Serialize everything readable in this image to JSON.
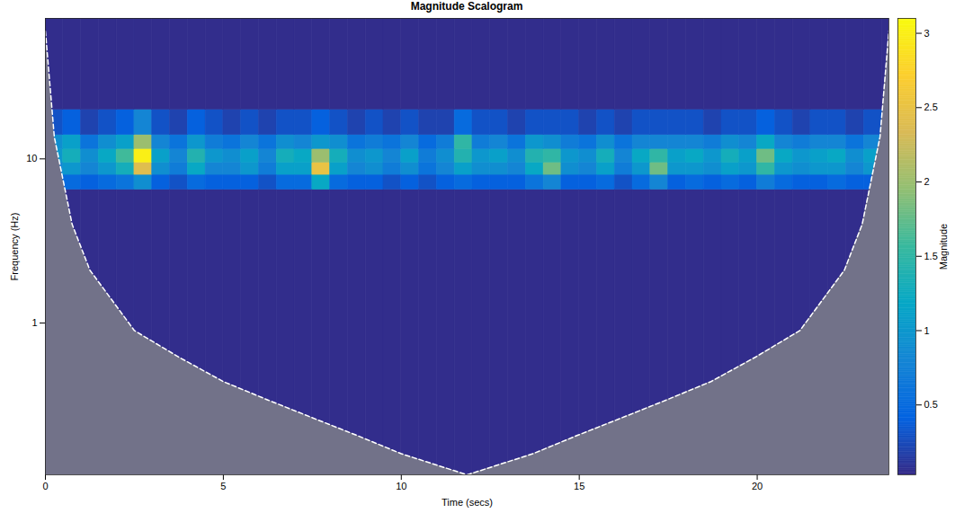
{
  "chart_data": {
    "type": "heatmap",
    "title": "Magnitude Scalogram",
    "x_label": "Time (secs)",
    "y_label": "Frequency (Hz)",
    "xlim": [
      0,
      23.7
    ],
    "ylim": [
      0.119,
      71.7
    ],
    "xticks": [
      0,
      5,
      10,
      15,
      20
    ],
    "yticks": [
      1,
      10
    ],
    "log": "y",
    "time_edges": [
      0,
      0.5,
      1,
      1.5,
      2,
      2.5,
      3,
      3.5,
      4,
      4.5,
      5,
      5.5,
      6,
      6.5,
      7,
      7.5,
      8,
      8.5,
      9,
      9.5,
      10,
      10.5,
      11,
      11.5,
      12,
      12.5,
      13,
      13.5,
      14,
      14.5,
      15,
      15.5,
      16,
      16.5,
      17,
      17.5,
      18,
      18.5,
      19,
      19.5,
      20,
      20.5,
      21,
      21.5,
      22,
      22.5,
      23,
      23.5,
      23.7
    ],
    "frequency_edges": [
      0.119,
      6.5,
      8,
      9.5,
      11.5,
      14,
      20,
      71.7
    ],
    "magnitude": [
      [
        0.05,
        0.05,
        0.05,
        0.05,
        0.05,
        0.05,
        0.05,
        0.05,
        0.05,
        0.05,
        0.05,
        0.05,
        0.05,
        0.05,
        0.05,
        0.05,
        0.05,
        0.05,
        0.05,
        0.05,
        0.05,
        0.05,
        0.05,
        0.05,
        0.05,
        0.05,
        0.05,
        0.05,
        0.05,
        0.05,
        0.05,
        0.05,
        0.05,
        0.05,
        0.05,
        0.05,
        0.05,
        0.05,
        0.05,
        0.05,
        0.05,
        0.05,
        0.05,
        0.05,
        0.05,
        0.05,
        0.05,
        0.05
      ],
      [
        0.4,
        0.5,
        0.4,
        0.5,
        0.6,
        0.9,
        0.4,
        0.3,
        0.5,
        0.4,
        0.4,
        0.4,
        0.3,
        0.5,
        0.5,
        1.2,
        0.5,
        0.4,
        0.4,
        0.3,
        0.4,
        0.3,
        0.4,
        0.5,
        0.4,
        0.4,
        0.4,
        0.6,
        0.8,
        0.4,
        0.4,
        0.5,
        0.3,
        0.5,
        0.8,
        0.4,
        0.5,
        0.4,
        0.5,
        0.4,
        0.7,
        0.5,
        0.4,
        0.4,
        0.5,
        0.4,
        0.4,
        0.6
      ],
      [
        0.8,
        1.0,
        0.8,
        1.0,
        1.3,
        2.4,
        0.9,
        0.7,
        1.2,
        0.8,
        0.8,
        1.0,
        0.7,
        1.1,
        1.1,
        2.5,
        1.1,
        0.8,
        0.9,
        0.7,
        0.9,
        0.6,
        0.8,
        1.1,
        0.9,
        0.9,
        0.8,
        1.2,
        1.8,
        0.9,
        0.8,
        1.1,
        0.7,
        1.0,
        1.8,
        1.0,
        1.0,
        0.9,
        1.1,
        1.0,
        1.5,
        1.0,
        0.9,
        1.0,
        1.0,
        0.8,
        1.0,
        1.2
      ],
      [
        1.0,
        1.3,
        0.9,
        1.2,
        1.6,
        3.0,
        1.1,
        0.8,
        1.4,
        1.0,
        0.9,
        1.1,
        0.8,
        1.3,
        1.2,
        2.0,
        1.3,
        0.9,
        1.0,
        0.8,
        1.1,
        0.7,
        0.9,
        1.4,
        1.0,
        1.1,
        0.9,
        1.4,
        1.5,
        1.0,
        0.9,
        1.3,
        0.8,
        1.2,
        1.5,
        1.1,
        1.2,
        1.0,
        1.3,
        1.1,
        1.8,
        1.2,
        1.0,
        1.1,
        1.2,
        0.9,
        1.1,
        1.5
      ],
      [
        0.9,
        1.1,
        0.6,
        0.9,
        1.1,
        2.0,
        0.8,
        0.6,
        1.0,
        0.7,
        0.6,
        0.8,
        0.6,
        0.9,
        0.8,
        1.0,
        0.9,
        0.6,
        0.7,
        0.6,
        0.8,
        0.5,
        0.7,
        1.5,
        0.7,
        0.8,
        0.6,
        1.0,
        0.9,
        0.7,
        0.6,
        0.9,
        0.6,
        0.8,
        0.8,
        0.8,
        0.8,
        0.7,
        0.9,
        0.8,
        1.2,
        0.8,
        0.7,
        0.8,
        0.8,
        0.6,
        0.8,
        1.0
      ],
      [
        0.3,
        0.4,
        0.2,
        0.3,
        0.4,
        0.8,
        0.3,
        0.2,
        0.4,
        0.3,
        0.2,
        0.3,
        0.2,
        0.3,
        0.3,
        0.4,
        0.3,
        0.2,
        0.3,
        0.2,
        0.3,
        0.2,
        0.2,
        0.5,
        0.3,
        0.3,
        0.2,
        0.3,
        0.3,
        0.3,
        0.2,
        0.3,
        0.2,
        0.3,
        0.3,
        0.3,
        0.3,
        0.2,
        0.3,
        0.3,
        0.4,
        0.3,
        0.2,
        0.3,
        0.3,
        0.2,
        0.3,
        0.4
      ],
      [
        0.05,
        0.05,
        0.05,
        0.05,
        0.05,
        0.05,
        0.05,
        0.05,
        0.05,
        0.05,
        0.05,
        0.05,
        0.05,
        0.05,
        0.05,
        0.05,
        0.05,
        0.05,
        0.05,
        0.05,
        0.05,
        0.05,
        0.05,
        0.05,
        0.05,
        0.05,
        0.05,
        0.05,
        0.05,
        0.05,
        0.05,
        0.05,
        0.05,
        0.05,
        0.05,
        0.05,
        0.05,
        0.05,
        0.05,
        0.05,
        0.05,
        0.05,
        0.05,
        0.05,
        0.05,
        0.05,
        0.05,
        0.05
      ]
    ],
    "colorbar": {
      "label": "Magnitude",
      "clim": [
        0.03,
        3.1
      ],
      "cticks": [
        0.5,
        1,
        1.5,
        2,
        2.5,
        3
      ]
    },
    "coi": {
      "x": [
        0,
        0.25,
        0.75,
        1.25,
        2.5,
        3.75,
        5,
        6.25,
        7.5,
        8.75,
        10,
        11.85,
        13.7,
        14.95,
        16.2,
        17.45,
        18.7,
        19.95,
        21.2,
        22.45,
        22.95,
        23.45,
        23.7
      ],
      "values": [
        60,
        13.6,
        4.0,
        2.1,
        0.9,
        0.62,
        0.44,
        0.34,
        0.265,
        0.207,
        0.16,
        0.119,
        0.16,
        0.207,
        0.265,
        0.34,
        0.44,
        0.62,
        0.9,
        2.1,
        4.0,
        13.6,
        60
      ]
    }
  }
}
